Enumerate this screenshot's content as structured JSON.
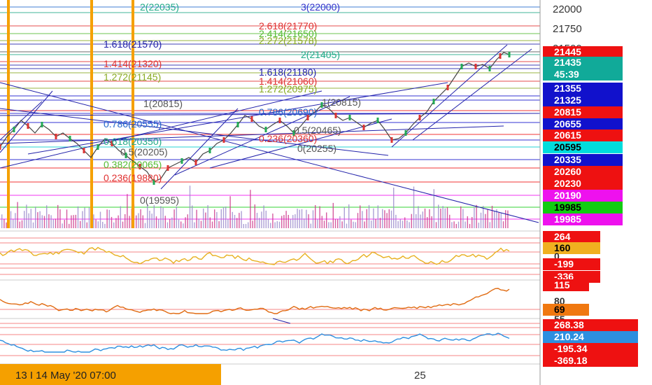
{
  "chart_data": {
    "type": "line",
    "main_axis_ticks": [
      "22000",
      "21750",
      "21500"
    ],
    "fib_labels_right": [
      {
        "text": "3(22000)",
        "color": "#3333cc"
      },
      {
        "text": "2.618(21770)",
        "color": "#e03030"
      },
      {
        "text": "2.414(21650)",
        "color": "#55bb33"
      },
      {
        "text": "2.272(21578)",
        "color": "#88aa22"
      },
      {
        "text": "2(21405)",
        "color": "#22aa88"
      },
      {
        "text": "1.618(21180)",
        "color": "#2222aa"
      },
      {
        "text": "1.414(21060)",
        "color": "#e03030"
      },
      {
        "text": "1.272(20975)",
        "color": "#88aa22"
      },
      {
        "text": "1(20815)",
        "color": "#555555"
      },
      {
        "text": "0.786(20690)",
        "color": "#2266cc"
      },
      {
        "text": "0.5(20465)",
        "color": "#555555"
      },
      {
        "text": "0.236(20360)",
        "color": "#e03030"
      },
      {
        "text": "0(20255)",
        "color": "#555555"
      }
    ],
    "fib_labels_left": [
      {
        "text": "2(22035)",
        "color": "#22aa88"
      },
      {
        "text": "1.618(21570)",
        "color": "#2222aa"
      },
      {
        "text": "1.414(21320)",
        "color": "#e03030"
      },
      {
        "text": "1.272(21145)",
        "color": "#88aa22"
      },
      {
        "text": "1(20815)",
        "color": "#555555"
      },
      {
        "text": "0.786(20555)",
        "color": "#2266cc"
      },
      {
        "text": "0.618(20350)",
        "color": "#22aa88"
      },
      {
        "text": "0.5(20205)",
        "color": "#555555"
      },
      {
        "text": "0.382(20065)",
        "color": "#55bb33"
      },
      {
        "text": "0.236(19880)",
        "color": "#e03030"
      },
      {
        "text": "0(19595)",
        "color": "#555555"
      }
    ],
    "price_badges": [
      {
        "text": "21445",
        "bg": "#ee1111",
        "fg": "#ffffff"
      },
      {
        "text": "21435",
        "bg": "#11aa99",
        "fg": "#ffffff"
      },
      {
        "text": "45:39",
        "bg": "#11aa99",
        "fg": "#ffffff"
      },
      {
        "text": "21355",
        "bg": "#1111cc",
        "fg": "#ffffff"
      },
      {
        "text": "21325",
        "bg": "#1111cc",
        "fg": "#ffffff"
      },
      {
        "text": "20815",
        "bg": "#ee1111",
        "fg": "#ffffff"
      },
      {
        "text": "20655",
        "bg": "#1111cc",
        "fg": "#ffffff"
      },
      {
        "text": "20615",
        "bg": "#ee1111",
        "fg": "#ffffff"
      },
      {
        "text": "20595",
        "bg": "#00dddd",
        "fg": "#000000"
      },
      {
        "text": "20335",
        "bg": "#1111cc",
        "fg": "#ffffff"
      },
      {
        "text": "20260",
        "bg": "#ee1111",
        "fg": "#ffffff"
      },
      {
        "text": "20230",
        "bg": "#ee1111",
        "fg": "#ffffff"
      },
      {
        "text": "20190",
        "bg": "#ee11ee",
        "fg": "#ffffff"
      },
      {
        "text": "19985",
        "bg": "#11cc11",
        "fg": "#000000"
      },
      {
        "text": "19985",
        "bg": "#ee11ee",
        "fg": "#ffffff"
      }
    ],
    "osc1": {
      "color": "#e8b020",
      "badges": [
        {
          "text": "264",
          "bg": "#ee1111",
          "fg": "#ffffff"
        },
        {
          "text": "160",
          "bg": "#f0b020",
          "fg": "#000000"
        },
        {
          "text": "0",
          "bg": "",
          "fg": "#333333"
        },
        {
          "text": "-199",
          "bg": "#ee1111",
          "fg": "#ffffff"
        },
        {
          "text": "-336",
          "bg": "#ee1111",
          "fg": "#ffffff"
        }
      ]
    },
    "osc2": {
      "color": "#e06a10",
      "badges": [
        {
          "text": "115",
          "bg": "#ee1111",
          "fg": "#ffffff"
        },
        {
          "text": "80",
          "bg": "",
          "fg": "#333333"
        },
        {
          "text": "69",
          "bg": "#f07810",
          "fg": "#000000"
        },
        {
          "text": "55",
          "bg": "",
          "fg": "#333333"
        }
      ]
    },
    "osc3": {
      "color": "#2d8fe0",
      "badges": [
        {
          "text": "268.38",
          "bg": "#ee1111",
          "fg": "#ffffff"
        },
        {
          "text": "210.24",
          "bg": "#2d8fe0",
          "fg": "#ffffff"
        },
        {
          "text": "-195.34",
          "bg": "#ee1111",
          "fg": "#ffffff"
        },
        {
          "text": "-369.18",
          "bg": "#ee1111",
          "fg": "#ffffff"
        }
      ]
    },
    "time_axis": {
      "tick": "25",
      "cursor_label": "13 I  14 May '20   07:00"
    },
    "colors": {
      "highlight": "#f5a000",
      "channel": "#2222aa"
    }
  }
}
